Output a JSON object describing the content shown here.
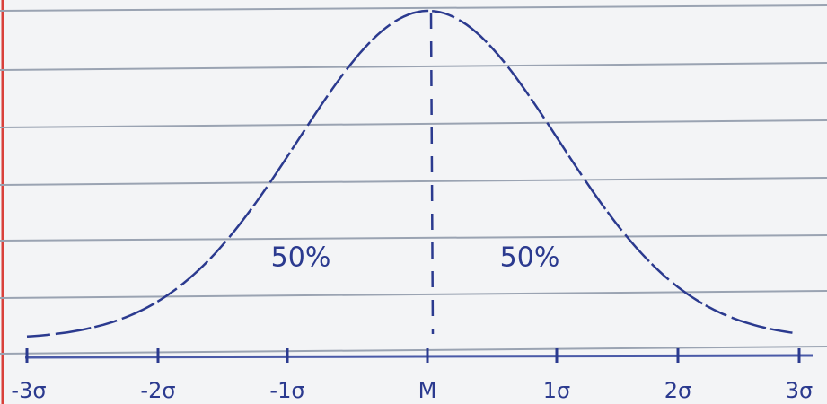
{
  "area_labels": [
    "50%",
    "50%"
  ],
  "axis_labels": [
    "-3σ",
    "-2σ",
    "-1σ",
    "M",
    "1σ",
    "2σ",
    "3σ"
  ]
}
